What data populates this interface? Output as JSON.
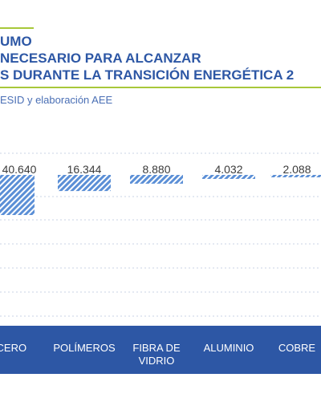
{
  "title_lines": [
    "UMO",
    "NECESARIO PARA ALCANZAR",
    "S DURANTE LA TRANSICIÓN ENERGÉTICA 2"
  ],
  "source": "ESID y elaboración AEE",
  "colors": {
    "title": "#2d57a5",
    "accent_line": "#a8c83a",
    "bar": "#5b8fd6",
    "category_band": "#2d57a5",
    "grid": "#c9d3e6"
  },
  "chart_data": {
    "type": "bar",
    "categories": [
      "ACERO",
      "POLÍMEROS",
      "FIBRA DE VIDRIO",
      "ALUMINIO",
      "COBRE"
    ],
    "category_lines": [
      [
        "ACERO"
      ],
      [
        "POLÍMEROS"
      ],
      [
        "FIBRA DE",
        "VIDRIO"
      ],
      [
        "ALUMINIO"
      ],
      [
        "COBRE"
      ]
    ],
    "values": [
      40640,
      16344,
      8880,
      4032,
      2088
    ],
    "value_labels": [
      "40.640",
      "16.344",
      "8.880",
      "4.032",
      "2.088"
    ],
    "bar_pattern": "diagonal-hatch",
    "grid": true
  }
}
